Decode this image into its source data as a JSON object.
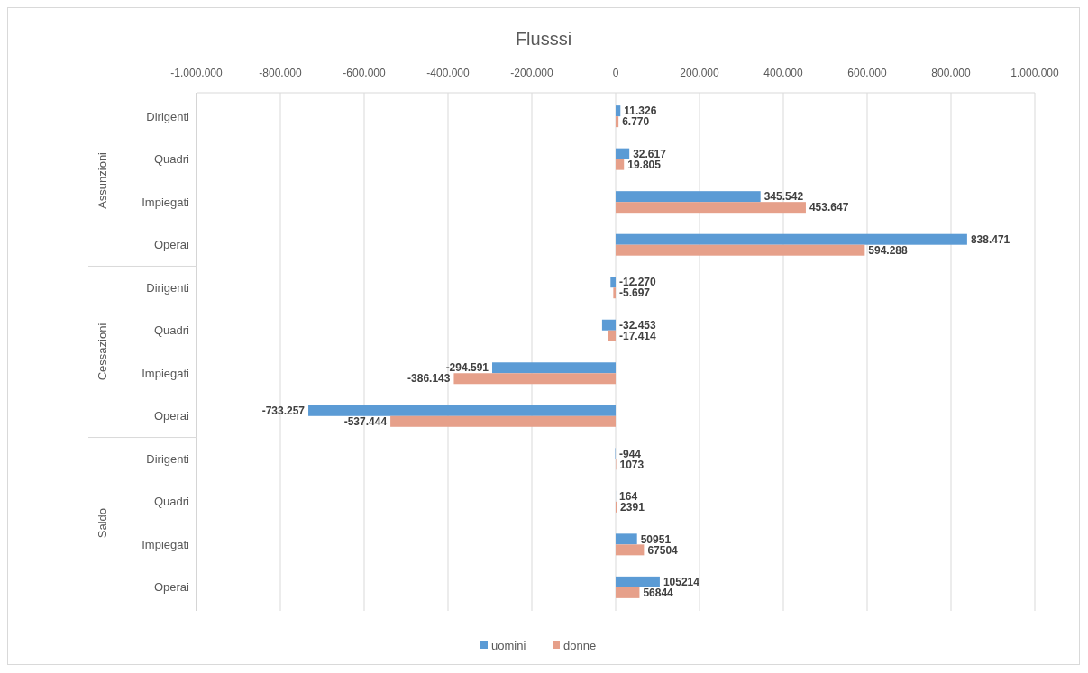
{
  "chart_data": {
    "type": "bar",
    "orientation": "horizontal",
    "title": "Flusssi",
    "categories": [
      "Dirigenti",
      "Quadri",
      "Impiegati",
      "Operai",
      "Dirigenti",
      "Quadri",
      "Impiegati",
      "Operai",
      "Dirigenti",
      "Quadri",
      "Impiegati",
      "Operai"
    ],
    "annotations": [
      "Assunzioni",
      "Cessazioni",
      "Saldo"
    ],
    "series": [
      {
        "name": "uomini",
        "color": "#5b9bd5",
        "values": [
          11326,
          32617,
          345542,
          838471,
          -12270,
          -32453,
          -294591,
          -733257,
          -944,
          164,
          50951,
          105214
        ],
        "value_labels": [
          "11.326",
          "32.617",
          "345.542",
          "838.471",
          "-12.270",
          "-32.453",
          "-294.591",
          "-733.257",
          "-944",
          "164",
          "50951",
          "105214"
        ]
      },
      {
        "name": "donne",
        "color": "#e6a08a",
        "values": [
          6770,
          19805,
          453647,
          594288,
          -5697,
          -17414,
          -386143,
          -537444,
          1073,
          2391,
          67504,
          56844
        ],
        "value_labels": [
          "6.770",
          "19.805",
          "453.647",
          "594.288",
          "-5.697",
          "-17.414",
          "-386.143",
          "-537.444",
          "1073",
          "2391",
          "67504",
          "56844"
        ]
      }
    ],
    "xlim": [
      -1000000,
      1000000
    ],
    "xticks": [
      {
        "value": -1000000,
        "label": "-1.000.000"
      },
      {
        "value": -800000,
        "label": "-800.000"
      },
      {
        "value": -600000,
        "label": "-600.000"
      },
      {
        "value": -400000,
        "label": "-400.000"
      },
      {
        "value": -200000,
        "label": "-200.000"
      },
      0,
      {
        "value": 200000,
        "label": "200.000"
      },
      {
        "value": 400000,
        "label": "400.000"
      },
      {
        "value": 600000,
        "label": "600.000"
      },
      {
        "value": 800000,
        "label": "800.000"
      },
      {
        "value": 1000000,
        "label": "1.000.000"
      }
    ],
    "grid": "x",
    "legend": "bottom"
  }
}
